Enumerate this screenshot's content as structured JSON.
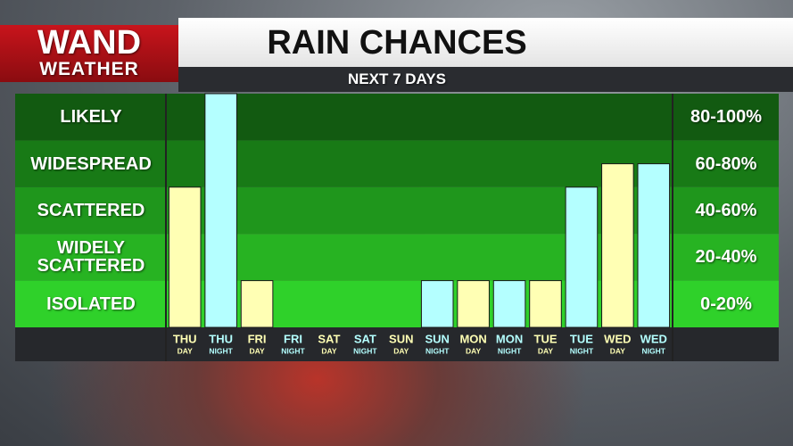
{
  "logo": {
    "name": "WAND",
    "sub": "WEATHER"
  },
  "chart_data": {
    "type": "bar",
    "title": "RAIN CHANCES",
    "subtitle": "NEXT 7 DAYS",
    "categories": [
      "THU",
      "THU",
      "FRI",
      "FRI",
      "SAT",
      "SAT",
      "SUN",
      "SUN",
      "MON",
      "MON",
      "TUE",
      "TUE",
      "WED",
      "WED"
    ],
    "periods": [
      "DAY",
      "NIGHT",
      "DAY",
      "NIGHT",
      "DAY",
      "NIGHT",
      "DAY",
      "NIGHT",
      "DAY",
      "NIGHT",
      "DAY",
      "NIGHT",
      "DAY",
      "NIGHT"
    ],
    "values": [
      60,
      100,
      20,
      0,
      0,
      0,
      0,
      20,
      20,
      20,
      20,
      60,
      70,
      70
    ],
    "bar_colors": [
      "#ffffb4",
      "#b4ffff",
      "#ffffb4",
      "#b4ffff",
      "#ffffb4",
      "#b4ffff",
      "#ffffb4",
      "#b4ffff",
      "#ffffb4",
      "#b4ffff",
      "#ffffb4",
      "#b4ffff",
      "#ffffb4",
      "#b4ffff"
    ],
    "ylim": [
      0,
      100
    ],
    "bands": [
      {
        "label": "ISOLATED",
        "range": "0-20%",
        "lo": 0,
        "hi": 20,
        "color": "#2fd12a"
      },
      {
        "label": "WIDELY SCATTERED",
        "range": "20-40%",
        "lo": 20,
        "hi": 40,
        "color": "#27b322"
      },
      {
        "label": "SCATTERED",
        "range": "40-60%",
        "lo": 40,
        "hi": 60,
        "color": "#1f961c"
      },
      {
        "label": "WIDESPREAD",
        "range": "60-80%",
        "lo": 60,
        "hi": 80,
        "color": "#187a16"
      },
      {
        "label": "LIKELY",
        "range": "80-100%",
        "lo": 80,
        "hi": 100,
        "color": "#125a11"
      }
    ]
  }
}
